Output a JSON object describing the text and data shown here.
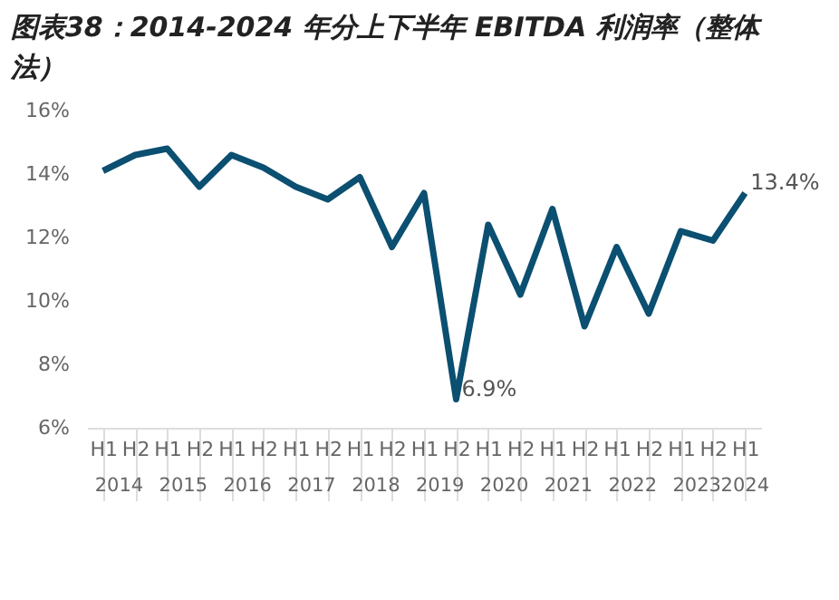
{
  "chart_data": {
    "type": "line",
    "title": "图表38：2014-2024 年分上下半年 EBITDA 利润率（整体法）",
    "categories": [
      "H1",
      "H2",
      "H1",
      "H2",
      "H1",
      "H2",
      "H1",
      "H2",
      "H1",
      "H2",
      "H1",
      "H2",
      "H1",
      "H2",
      "H1",
      "H2",
      "H1",
      "H2",
      "H1",
      "H2",
      "H1"
    ],
    "series": [
      {
        "color": "#0b4f71",
        "values": [
          14.1,
          14.6,
          14.8,
          13.6,
          14.6,
          14.2,
          13.6,
          13.2,
          13.9,
          11.7,
          13.4,
          6.9,
          12.4,
          10.2,
          12.9,
          9.2,
          11.7,
          9.6,
          12.2,
          11.9,
          13.4
        ],
        "value_labels": [
          null,
          null,
          null,
          null,
          null,
          null,
          null,
          null,
          null,
          null,
          null,
          "6.9%",
          null,
          null,
          null,
          null,
          null,
          null,
          null,
          null,
          "13.4%"
        ]
      }
    ],
    "annotations": [
      "2014",
      "2015",
      "2016",
      "2017",
      "2018",
      "2019",
      "2020",
      "2021",
      "2022",
      "2023",
      "2024"
    ],
    "ylim": [
      6,
      16
    ],
    "yticks": [
      {
        "value": 6,
        "label": "6%"
      },
      {
        "value": 8,
        "label": "8%"
      },
      {
        "value": 10,
        "label": "10%"
      },
      {
        "value": 12,
        "label": "12%"
      },
      {
        "value": 14,
        "label": "14%"
      },
      {
        "value": 16,
        "label": "16%"
      }
    ],
    "marker": "none",
    "line_style": "solid"
  }
}
